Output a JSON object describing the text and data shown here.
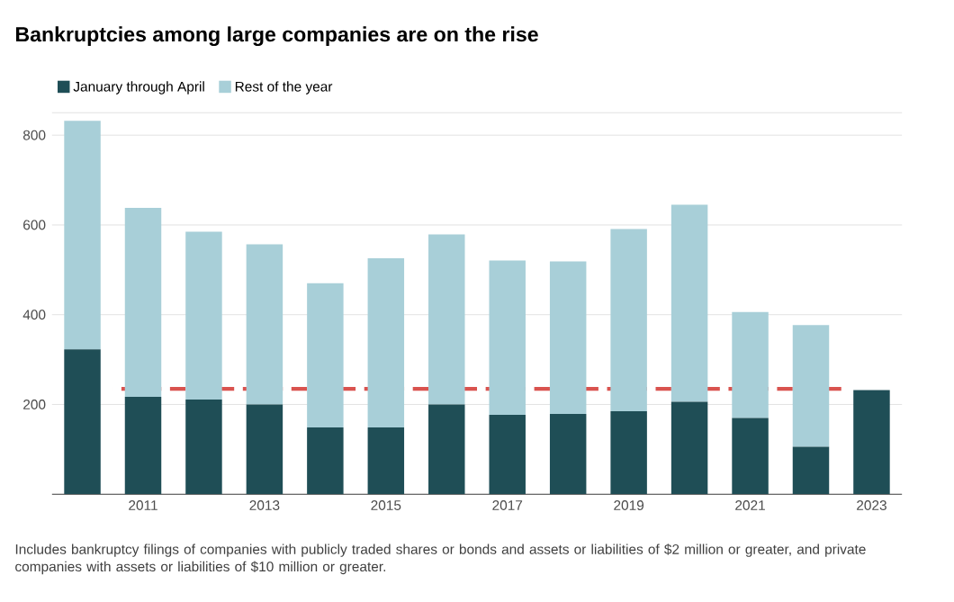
{
  "chart_data": {
    "type": "bar",
    "stacked": true,
    "title": "Bankruptcies among large companies are on the rise",
    "categories": [
      null,
      "2011",
      null,
      "2013",
      null,
      "2015",
      null,
      "2017",
      null,
      "2019",
      null,
      "2021",
      null,
      "2023"
    ],
    "series": [
      {
        "name": "January through April",
        "color": "#1f4e56",
        "values": [
          323,
          217,
          211,
          200,
          149,
          149,
          200,
          177,
          179,
          185,
          206,
          170,
          106,
          232
        ]
      },
      {
        "name": "Rest of the year",
        "color": "#a8cfd8",
        "values": [
          509,
          421,
          374,
          357,
          321,
          377,
          379,
          344,
          340,
          406,
          439,
          236,
          271,
          null
        ]
      }
    ],
    "ylim": [
      0,
      850
    ],
    "yticks": [
      200,
      400,
      600,
      800
    ],
    "grid": "y",
    "legend": "top left",
    "ref_lines": [
      {
        "axis": "y",
        "value": 235,
        "color": "#d9534f",
        "line_style": "dashed"
      }
    ],
    "annotations": [
      "Includes bankruptcy filings of companies with publicly traded shares or bonds and assets or liabilities of $2 million or greater, and private companies with assets or liabilities of $10 million or greater."
    ]
  }
}
